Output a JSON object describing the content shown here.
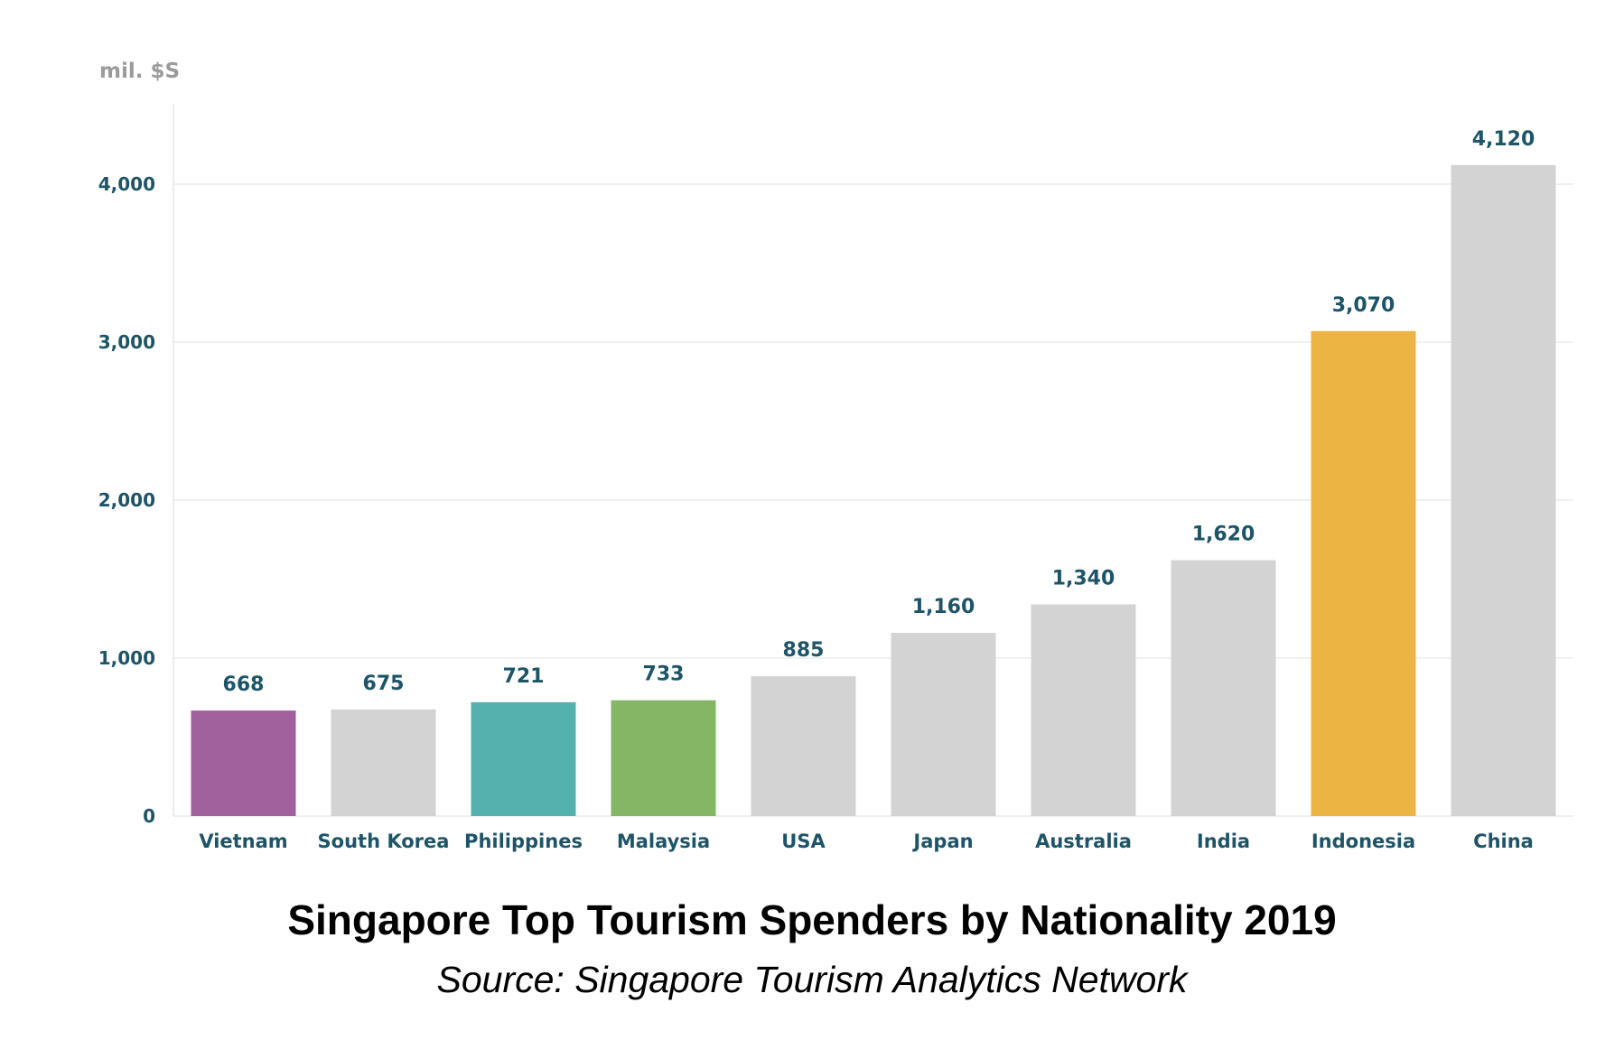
{
  "chart_data": {
    "type": "bar",
    "title": "Singapore Top Tourism Spenders by Nationality 2019",
    "subtitle": "Source: Singapore Tourism Analytics Network",
    "unit_label": "mil. $S",
    "categories": [
      "Vietnam",
      "South Korea",
      "Philippines",
      "Malaysia",
      "USA",
      "Japan",
      "Australia",
      "India",
      "Indonesia",
      "China"
    ],
    "values": [
      668,
      675,
      721,
      733,
      885,
      1160,
      1340,
      1620,
      3070,
      4120
    ],
    "value_labels": [
      "668",
      "675",
      "721",
      "733",
      "885",
      "1,160",
      "1,340",
      "1,620",
      "3,070",
      "4,120"
    ],
    "bar_colors": [
      "#a0619c",
      "#d3d3d3",
      "#55b1ae",
      "#84b665",
      "#d3d3d3",
      "#d3d3d3",
      "#d3d3d3",
      "#d3d3d3",
      "#ecb443",
      "#d3d3d3"
    ],
    "y_ticks": [
      0,
      1000,
      2000,
      3000,
      4000
    ],
    "y_tick_labels": [
      "0",
      "1,000",
      "2,000",
      "3,000",
      "4,000"
    ],
    "ylim": [
      0,
      4500
    ],
    "grid": true,
    "legend": "none"
  }
}
